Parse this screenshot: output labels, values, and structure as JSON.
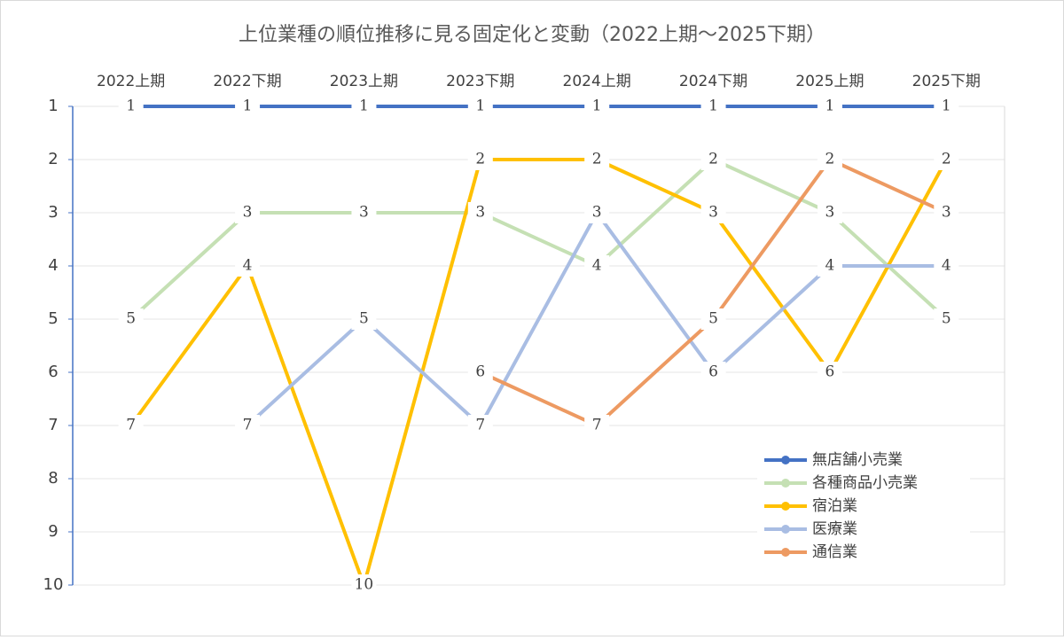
{
  "chart_data": {
    "type": "line",
    "title": "上位業種の順位推移に見る固定化と変動（2022上期～2025下期）",
    "categories": [
      "2022上期",
      "2022下期",
      "2023上期",
      "2023下期",
      "2024上期",
      "2024下期",
      "2025上期",
      "2025下期"
    ],
    "series": [
      {
        "name": "無店舗小売業",
        "color": "#4472c4",
        "values": [
          1,
          1,
          1,
          1,
          1,
          1,
          1,
          1
        ]
      },
      {
        "name": "各種商品小売業",
        "color": "#c5e0b4",
        "values": [
          5,
          3,
          3,
          3,
          4,
          2,
          3,
          5
        ]
      },
      {
        "name": "宿泊業",
        "color": "#ffc000",
        "values": [
          7,
          4,
          10,
          2,
          2,
          3,
          6,
          2
        ]
      },
      {
        "name": "医療業",
        "color": "#a9bde3",
        "values": [
          null,
          7,
          5,
          7,
          3,
          6,
          4,
          4
        ]
      },
      {
        "name": "通信業",
        "color": "#ed9a62",
        "values": [
          null,
          null,
          null,
          6,
          7,
          5,
          2,
          3
        ]
      }
    ],
    "ylim": [
      1,
      10
    ],
    "y_inverted": true,
    "yticks": [
      1,
      2,
      3,
      4,
      5,
      6,
      7,
      8,
      9,
      10
    ],
    "grid": true,
    "legend": "lower right"
  }
}
